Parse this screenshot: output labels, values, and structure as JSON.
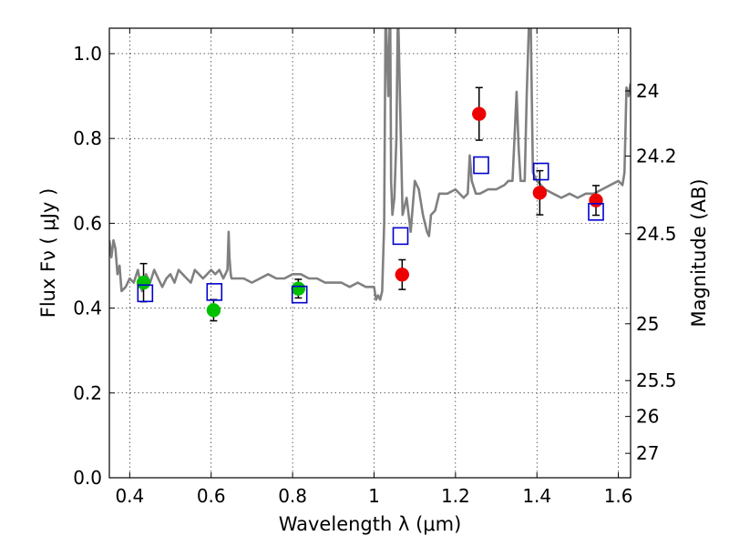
{
  "chart_data": {
    "type": "scatter",
    "xlabel": "Wavelength  λ (μm)",
    "ylabel": "Flux  Fν  ( μJy )",
    "y2label": "Magnitude (AB)",
    "xlim": [
      0.35,
      1.63
    ],
    "ylim": [
      0.0,
      1.06
    ],
    "grid": true,
    "x_ticks": [
      {
        "v": 0.4,
        "label": "0.4"
      },
      {
        "v": 0.6,
        "label": "0.6"
      },
      {
        "v": 0.8,
        "label": "0.8"
      },
      {
        "v": 1.0,
        "label": "1"
      },
      {
        "v": 1.2,
        "label": "1.2"
      },
      {
        "v": 1.4,
        "label": "1.4"
      },
      {
        "v": 1.6,
        "label": "1.6"
      }
    ],
    "y_ticks": [
      {
        "v": 0.0,
        "label": "0.0"
      },
      {
        "v": 0.2,
        "label": "0.2"
      },
      {
        "v": 0.4,
        "label": "0.4"
      },
      {
        "v": 0.6,
        "label": "0.6"
      },
      {
        "v": 0.8,
        "label": "0.8"
      },
      {
        "v": 1.0,
        "label": "1.0"
      }
    ],
    "y2_ticks": [
      {
        "mag": 24,
        "label": "24"
      },
      {
        "mag": 24.2,
        "label": "24.2"
      },
      {
        "mag": 24.5,
        "label": "24.5"
      },
      {
        "mag": 25,
        "label": "25"
      },
      {
        "mag": 25.5,
        "label": "25.5"
      },
      {
        "mag": 26,
        "label": "26"
      },
      {
        "mag": 27,
        "label": "27"
      }
    ],
    "colors": {
      "spectrum": "#808080",
      "green": "#00c000",
      "red": "#ee0000",
      "model": "#0000cc",
      "error": "#000000"
    },
    "spectrum": {
      "x": [
        0.35,
        0.355,
        0.36,
        0.365,
        0.37,
        0.375,
        0.38,
        0.39,
        0.4,
        0.41,
        0.42,
        0.43,
        0.44,
        0.45,
        0.46,
        0.47,
        0.48,
        0.49,
        0.5,
        0.51,
        0.52,
        0.53,
        0.54,
        0.55,
        0.56,
        0.57,
        0.58,
        0.59,
        0.6,
        0.61,
        0.62,
        0.63,
        0.64,
        0.643,
        0.645,
        0.648,
        0.65,
        0.66,
        0.68,
        0.7,
        0.72,
        0.74,
        0.76,
        0.78,
        0.8,
        0.82,
        0.84,
        0.86,
        0.88,
        0.9,
        0.92,
        0.94,
        0.96,
        0.98,
        1.0,
        1.005,
        1.01,
        1.015,
        1.02,
        1.025,
        1.028,
        1.03,
        1.035,
        1.038,
        1.04,
        1.042,
        1.045,
        1.05,
        1.055,
        1.058,
        1.06,
        1.065,
        1.07,
        1.08,
        1.09,
        1.1,
        1.11,
        1.12,
        1.13,
        1.135,
        1.14,
        1.15,
        1.16,
        1.18,
        1.2,
        1.22,
        1.23,
        1.235,
        1.24,
        1.25,
        1.26,
        1.28,
        1.3,
        1.32,
        1.33,
        1.34,
        1.345,
        1.35,
        1.355,
        1.36,
        1.37,
        1.375,
        1.38,
        1.385,
        1.39,
        1.4,
        1.42,
        1.44,
        1.46,
        1.48,
        1.5,
        1.52,
        1.54,
        1.56,
        1.58,
        1.6,
        1.61,
        1.615,
        1.62,
        1.625,
        1.63
      ],
      "y": [
        0.56,
        0.52,
        0.56,
        0.54,
        0.48,
        0.5,
        0.44,
        0.45,
        0.47,
        0.46,
        0.49,
        0.44,
        0.48,
        0.46,
        0.49,
        0.47,
        0.45,
        0.47,
        0.48,
        0.46,
        0.49,
        0.48,
        0.47,
        0.46,
        0.49,
        0.48,
        0.47,
        0.48,
        0.49,
        0.48,
        0.49,
        0.47,
        0.49,
        0.58,
        0.52,
        0.48,
        0.47,
        0.47,
        0.47,
        0.46,
        0.47,
        0.48,
        0.47,
        0.47,
        0.48,
        0.48,
        0.47,
        0.47,
        0.46,
        0.46,
        0.46,
        0.45,
        0.46,
        0.45,
        0.45,
        0.42,
        0.43,
        0.42,
        0.44,
        0.6,
        1.06,
        1.06,
        0.9,
        1.06,
        1.06,
        0.7,
        0.62,
        0.66,
        0.8,
        1.06,
        1.06,
        0.84,
        0.62,
        0.66,
        0.58,
        0.7,
        0.68,
        0.62,
        0.58,
        0.57,
        0.62,
        0.63,
        0.67,
        0.67,
        0.68,
        0.66,
        0.67,
        0.76,
        0.7,
        0.67,
        0.67,
        0.68,
        0.68,
        0.69,
        0.7,
        0.7,
        0.8,
        0.91,
        0.78,
        0.7,
        0.7,
        0.9,
        1.06,
        1.06,
        0.72,
        0.7,
        0.68,
        0.67,
        0.66,
        0.67,
        0.66,
        0.67,
        0.67,
        0.68,
        0.69,
        0.7,
        0.69,
        0.72,
        0.92,
        0.9,
        0.93
      ]
    },
    "series": [
      {
        "marker": "circle-green",
        "points": [
          {
            "x": 0.434,
            "y": 0.46,
            "err": 0.045
          },
          {
            "x": 0.606,
            "y": 0.395,
            "err": 0.025
          },
          {
            "x": 0.814,
            "y": 0.446,
            "err": 0.022
          }
        ]
      },
      {
        "marker": "circle-red",
        "points": [
          {
            "x": 1.069,
            "y": 0.479,
            "err": 0.035
          },
          {
            "x": 1.258,
            "y": 0.858,
            "err": 0.062
          },
          {
            "x": 1.407,
            "y": 0.672,
            "err": 0.052
          },
          {
            "x": 1.545,
            "y": 0.654,
            "err": 0.035
          }
        ]
      },
      {
        "marker": "open-square-blue",
        "points": [
          {
            "x": 0.438,
            "y": 0.435
          },
          {
            "x": 0.608,
            "y": 0.438
          },
          {
            "x": 0.817,
            "y": 0.432
          },
          {
            "x": 1.065,
            "y": 0.57
          },
          {
            "x": 1.263,
            "y": 0.737
          },
          {
            "x": 1.41,
            "y": 0.722
          },
          {
            "x": 1.545,
            "y": 0.627
          }
        ]
      }
    ]
  }
}
